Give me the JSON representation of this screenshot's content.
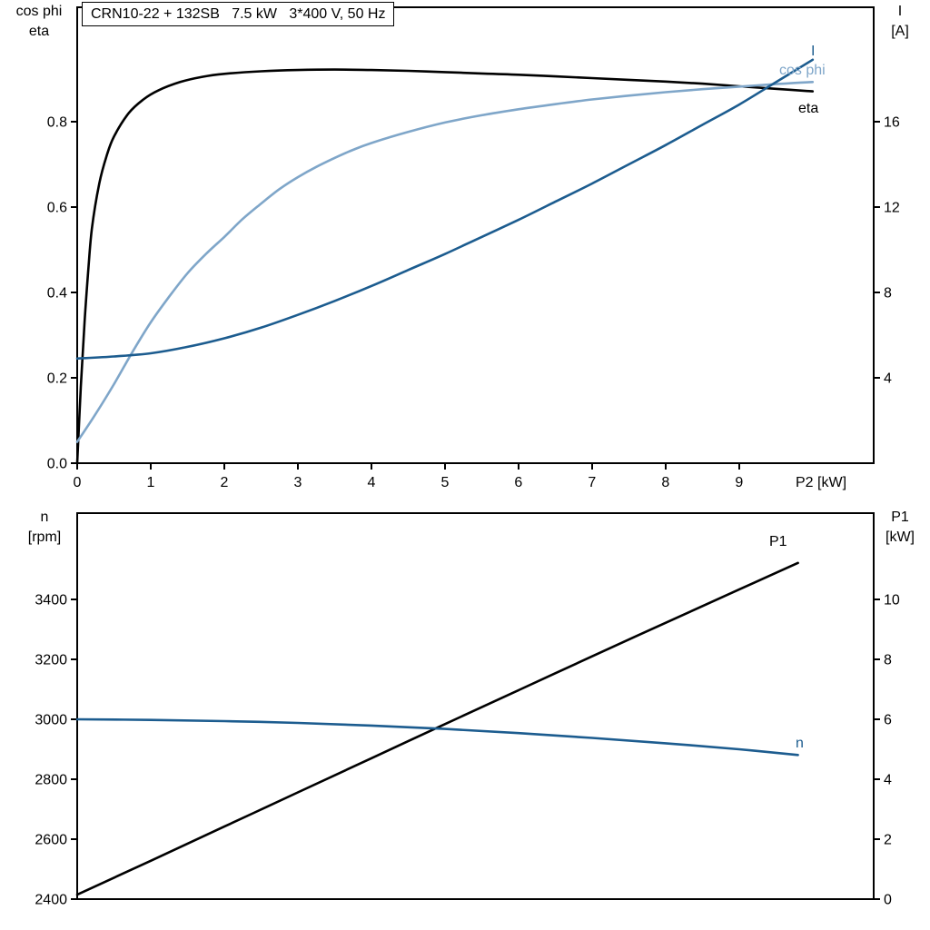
{
  "title_box": {
    "text": "CRN10-22 + 132SB   7.5 kW   3*400 V, 50 Hz"
  },
  "colors": {
    "black": "#000000",
    "dark_blue": "#1c5c8f",
    "light_blue": "#7fa6c9"
  },
  "chart_data": [
    {
      "type": "line",
      "title": "CRN10-22 + 132SB   7.5 kW   3*400 V, 50 Hz",
      "x_label": "P2 [kW]",
      "x_range": [
        0,
        10.83
      ],
      "x_ticks": [
        0,
        1,
        2,
        3,
        4,
        5,
        6,
        7,
        8,
        9
      ],
      "left_axis": {
        "label_line1": "cos phi",
        "label_line2": "eta",
        "range": [
          0,
          1.068
        ],
        "ticks": [
          "0.0",
          "0.2",
          "0.4",
          "0.6",
          "0.8"
        ]
      },
      "right_axis": {
        "label_line1": "I",
        "label_line2": "[A]",
        "range": [
          0,
          21.36
        ],
        "ticks": [
          "4",
          "8",
          "12",
          "16"
        ]
      },
      "legend_position": "right-inline",
      "grid": false,
      "series": [
        {
          "name": "eta",
          "label": "eta",
          "axis": "left",
          "color": "black",
          "points": [
            [
              0,
              0
            ],
            [
              0.05,
              0.18
            ],
            [
              0.1,
              0.33
            ],
            [
              0.15,
              0.45
            ],
            [
              0.2,
              0.55
            ],
            [
              0.3,
              0.655
            ],
            [
              0.4,
              0.72
            ],
            [
              0.5,
              0.765
            ],
            [
              0.7,
              0.82
            ],
            [
              0.9,
              0.852
            ],
            [
              1.1,
              0.873
            ],
            [
              1.4,
              0.893
            ],
            [
              1.7,
              0.905
            ],
            [
              2,
              0.912
            ],
            [
              2.5,
              0.918
            ],
            [
              3,
              0.921
            ],
            [
              3.5,
              0.922
            ],
            [
              4,
              0.921
            ],
            [
              4.5,
              0.919
            ],
            [
              5,
              0.916
            ],
            [
              5.5,
              0.913
            ],
            [
              6,
              0.91
            ],
            [
              6.5,
              0.906
            ],
            [
              7,
              0.902
            ],
            [
              7.5,
              0.898
            ],
            [
              8,
              0.894
            ],
            [
              8.5,
              0.889
            ],
            [
              9,
              0.883
            ],
            [
              9.5,
              0.877
            ],
            [
              10,
              0.871
            ]
          ]
        },
        {
          "name": "cos_phi",
          "label": "cos phi",
          "axis": "left",
          "color": "light_blue",
          "points": [
            [
              0,
              0.05
            ],
            [
              0.25,
              0.115
            ],
            [
              0.5,
              0.185
            ],
            [
              0.75,
              0.26
            ],
            [
              1,
              0.33
            ],
            [
              1.25,
              0.39
            ],
            [
              1.5,
              0.445
            ],
            [
              1.75,
              0.49
            ],
            [
              2,
              0.53
            ],
            [
              2.25,
              0.572
            ],
            [
              2.5,
              0.608
            ],
            [
              2.75,
              0.642
            ],
            [
              3,
              0.67
            ],
            [
              3.25,
              0.694
            ],
            [
              3.5,
              0.715
            ],
            [
              3.75,
              0.734
            ],
            [
              4,
              0.75
            ],
            [
              4.5,
              0.776
            ],
            [
              5,
              0.798
            ],
            [
              5.5,
              0.815
            ],
            [
              6,
              0.829
            ],
            [
              6.5,
              0.841
            ],
            [
              7,
              0.852
            ],
            [
              7.5,
              0.861
            ],
            [
              8,
              0.869
            ],
            [
              8.5,
              0.876
            ],
            [
              9,
              0.882
            ],
            [
              9.5,
              0.888
            ],
            [
              10,
              0.893
            ]
          ]
        },
        {
          "name": "current",
          "label": "I",
          "axis": "right",
          "color": "dark_blue",
          "points": [
            [
              0,
              4.9
            ],
            [
              0.5,
              5.0
            ],
            [
              1,
              5.15
            ],
            [
              1.5,
              5.45
            ],
            [
              2,
              5.85
            ],
            [
              2.5,
              6.35
            ],
            [
              3,
              6.95
            ],
            [
              3.5,
              7.6
            ],
            [
              4,
              8.3
            ],
            [
              4.5,
              9.05
            ],
            [
              5,
              9.8
            ],
            [
              5.5,
              10.6
            ],
            [
              6,
              11.4
            ],
            [
              6.5,
              12.25
            ],
            [
              7,
              13.1
            ],
            [
              7.5,
              14.0
            ],
            [
              8,
              14.9
            ],
            [
              8.5,
              15.85
            ],
            [
              9,
              16.8
            ],
            [
              9.5,
              17.85
            ],
            [
              10,
              18.9
            ]
          ]
        }
      ]
    },
    {
      "type": "line",
      "title": "",
      "x_label": "",
      "x_range": [
        0,
        10.83
      ],
      "x_ticks": [],
      "left_axis": {
        "label_line1": "n",
        "label_line2": "[rpm]",
        "range": [
          2400,
          3688
        ],
        "ticks": [
          "2400",
          "2600",
          "2800",
          "3000",
          "3200",
          "3400"
        ]
      },
      "right_axis": {
        "label_line1": "P1",
        "label_line2": "[kW]",
        "range": [
          0,
          12.88
        ],
        "ticks": [
          "0",
          "2",
          "4",
          "6",
          "8",
          "10"
        ]
      },
      "legend_position": "right-inline",
      "grid": false,
      "series": [
        {
          "name": "input_power",
          "label": "P1",
          "axis": "right",
          "color": "black",
          "points": [
            [
              0,
              0.15
            ],
            [
              1,
              1.28
            ],
            [
              2,
              2.42
            ],
            [
              3,
              3.56
            ],
            [
              4,
              4.7
            ],
            [
              5,
              5.84
            ],
            [
              6,
              6.97
            ],
            [
              7,
              8.1
            ],
            [
              8,
              9.22
            ],
            [
              9,
              10.33
            ],
            [
              9.8,
              11.22
            ]
          ]
        },
        {
          "name": "speed",
          "label": "n",
          "axis": "left",
          "color": "dark_blue",
          "points": [
            [
              0,
              3000
            ],
            [
              1,
              2998
            ],
            [
              2,
              2994
            ],
            [
              3,
              2988
            ],
            [
              4,
              2979
            ],
            [
              5,
              2968
            ],
            [
              6,
              2954
            ],
            [
              7,
              2938
            ],
            [
              8,
              2920
            ],
            [
              9,
              2900
            ],
            [
              9.8,
              2881
            ]
          ]
        }
      ]
    }
  ]
}
